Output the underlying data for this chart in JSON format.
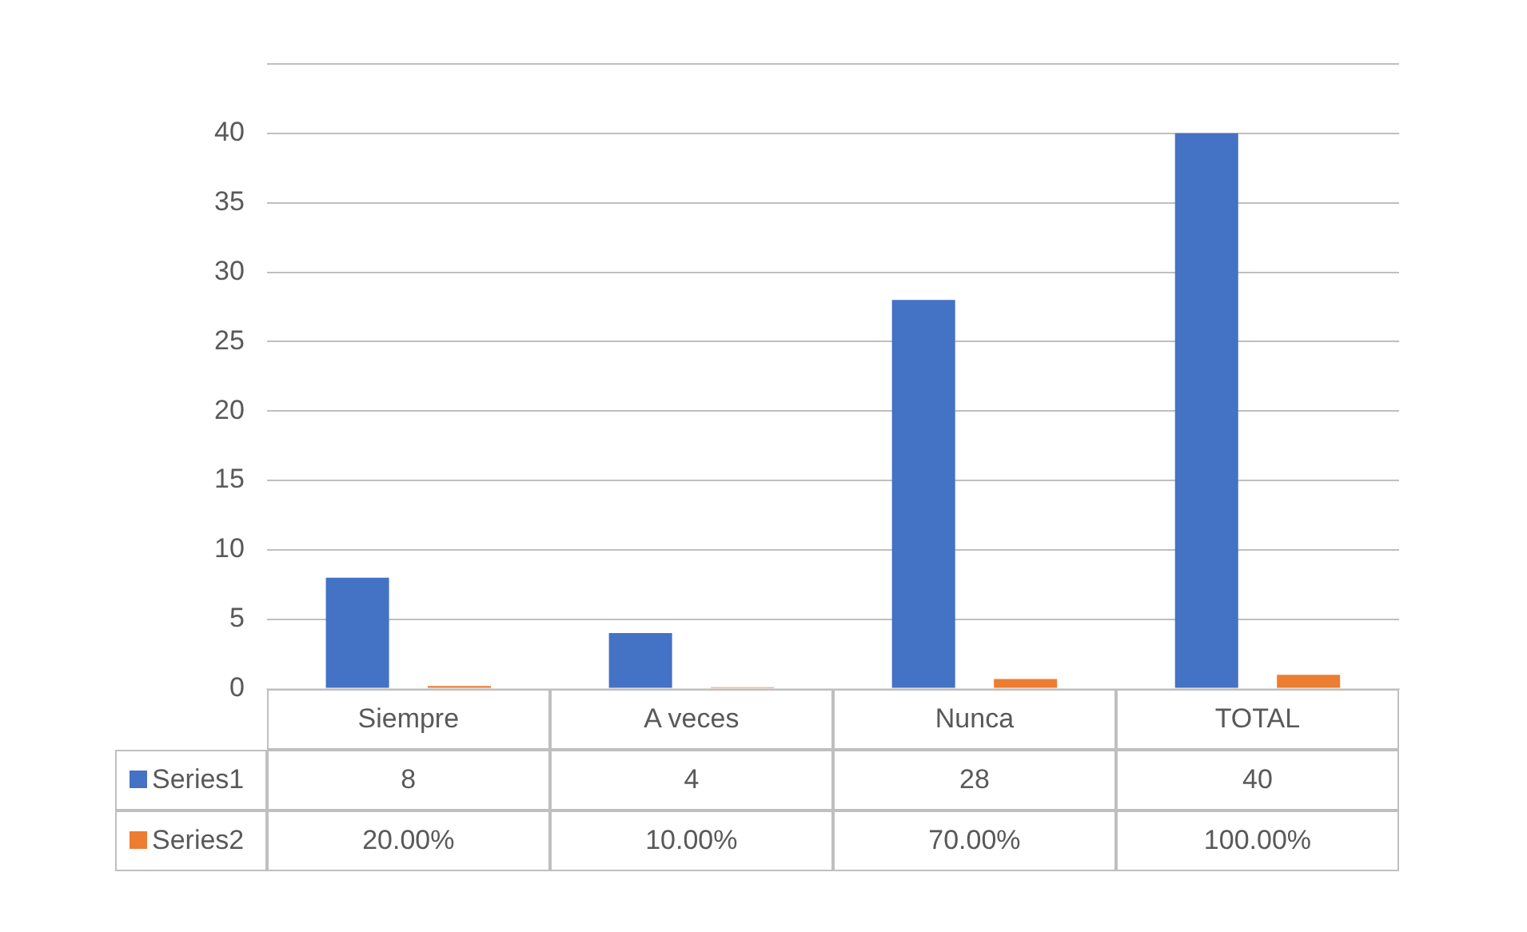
{
  "chart_data": {
    "type": "bar",
    "categories": [
      "Siempre",
      "A veces",
      "Nunca",
      "TOTAL"
    ],
    "series": [
      {
        "name": "Series1",
        "color": "#4472c4",
        "values": [
          8,
          4,
          28,
          40
        ],
        "value_labels": [
          "8",
          "4",
          "28",
          "40"
        ]
      },
      {
        "name": "Series2",
        "color": "#ed7d31",
        "values": [
          0.2,
          0.1,
          0.7,
          1
        ],
        "value_labels": [
          "20.00%",
          "10.00%",
          "70.00%",
          "100.00%"
        ]
      }
    ],
    "ylim": [
      0,
      45
    ],
    "yticks": [
      0,
      5,
      10,
      15,
      20,
      25,
      30,
      35,
      40,
      {
        "value": 45,
        "label": null
      }
    ],
    "grid": "y",
    "legend": "bottom left"
  }
}
